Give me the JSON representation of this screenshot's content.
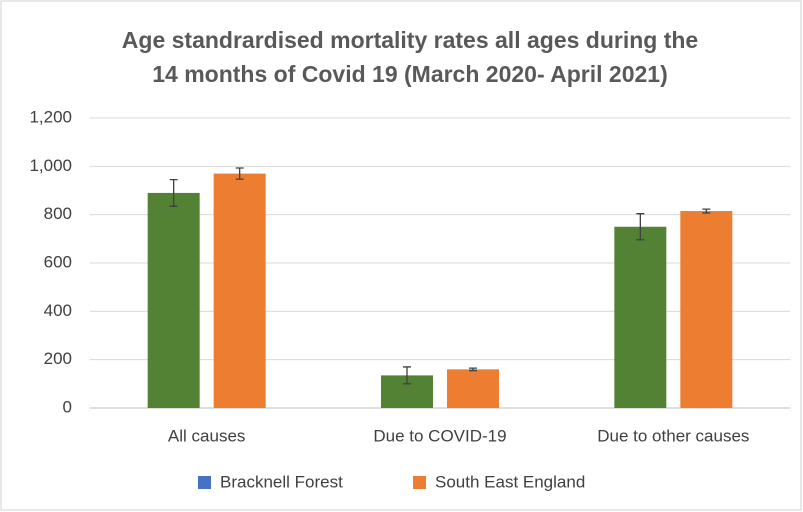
{
  "chart_data": {
    "type": "bar",
    "title": [
      "Age standrardised mortality rates all ages during the",
      "14 months of Covid 19 (March 2020- April 2021)"
    ],
    "categories": [
      "All causes",
      "Due to COVID-19",
      "Due to other causes"
    ],
    "series": [
      {
        "name": "Bracknell Forest",
        "color": "#548235",
        "legend_color": "#4472c4",
        "values": [
          890,
          135,
          750
        ],
        "errors": [
          55,
          35,
          54
        ]
      },
      {
        "name": "South East England",
        "color": "#ed7d31",
        "legend_color": "#ed7d31",
        "values": [
          970,
          160,
          815
        ],
        "errors": [
          23,
          5,
          8
        ]
      }
    ],
    "ylim": [
      0,
      1200
    ],
    "yticks": [
      0,
      200,
      400,
      600,
      800,
      {
        "value": 1000,
        "label": "1,000"
      },
      {
        "value": 1200,
        "label": "1,200"
      }
    ],
    "grid": true
  }
}
